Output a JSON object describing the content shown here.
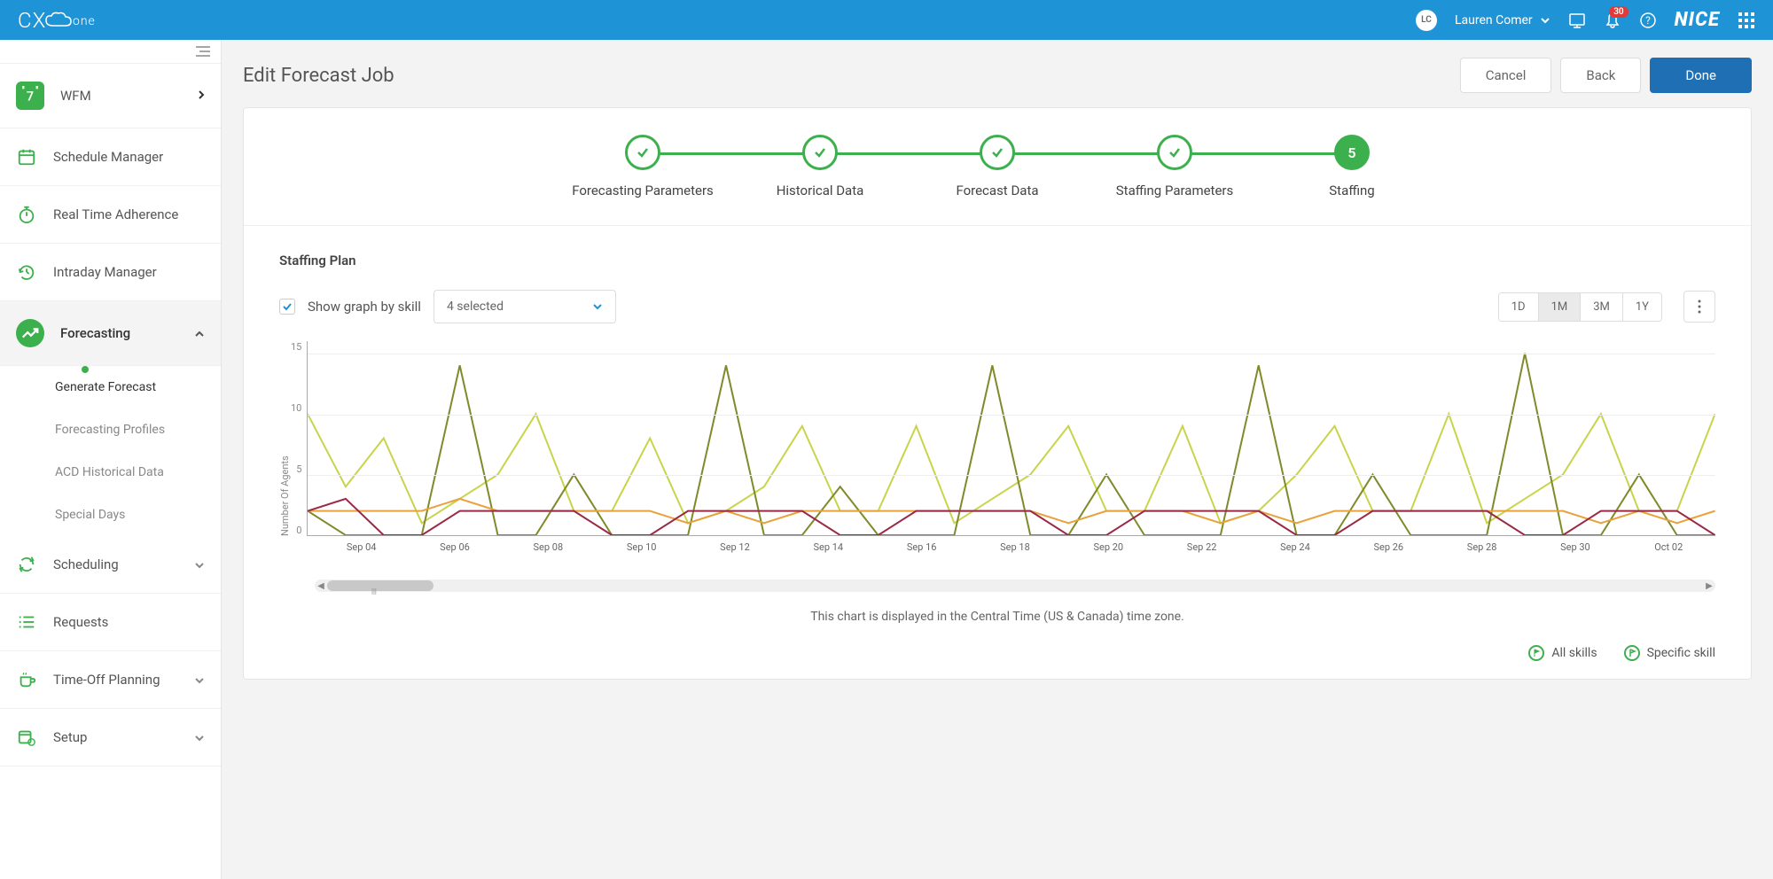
{
  "header": {
    "logo": "CX",
    "logo_suffix": "one",
    "user_initials": "LC",
    "user_name": "Lauren Comer",
    "notification_count": "30",
    "brand": "NICE"
  },
  "sidebar": {
    "main": {
      "label": "WFM"
    },
    "items": [
      {
        "label": "Schedule Manager",
        "icon": "calendar"
      },
      {
        "label": "Real Time Adherence",
        "icon": "clock"
      },
      {
        "label": "Intraday Manager",
        "icon": "refresh-clock"
      },
      {
        "label": "Forecasting",
        "icon": "trend",
        "active": true,
        "expanded": true
      },
      {
        "label": "Scheduling",
        "icon": "sync",
        "expandable": true
      },
      {
        "label": "Requests",
        "icon": "list"
      },
      {
        "label": "Time-Off Planning",
        "icon": "cup",
        "expandable": true
      },
      {
        "label": "Setup",
        "icon": "gear",
        "expandable": true
      }
    ],
    "forecasting_sub": [
      {
        "label": "Generate Forecast",
        "active": true
      },
      {
        "label": "Forecasting Profiles"
      },
      {
        "label": "ACD Historical Data"
      },
      {
        "label": "Special Days"
      }
    ]
  },
  "page": {
    "title": "Edit Forecast Job",
    "cancel": "Cancel",
    "back": "Back",
    "done": "Done"
  },
  "stepper": {
    "steps": [
      {
        "label": "Forecasting Parameters",
        "done": true
      },
      {
        "label": "Historical Data",
        "done": true
      },
      {
        "label": "Forecast Data",
        "done": true
      },
      {
        "label": "Staffing Parameters",
        "done": true
      },
      {
        "label": "Staffing",
        "current": true,
        "num": "5"
      }
    ]
  },
  "chart": {
    "section_title": "Staffing Plan",
    "checkbox_label": "Show graph by skill",
    "selected_text": "4 selected",
    "ranges": [
      "1D",
      "1M",
      "3M",
      "1Y"
    ],
    "range_active": "1M",
    "y_label": "Number Of Agents",
    "y_ticks": [
      "15",
      "10",
      "5",
      "0"
    ],
    "x_labels": [
      "Sep 04",
      "Sep 06",
      "Sep 08",
      "Sep 10",
      "Sep 12",
      "Sep 14",
      "Sep 16",
      "Sep 18",
      "Sep 20",
      "Sep 22",
      "Sep 24",
      "Sep 26",
      "Sep 28",
      "Sep 30",
      "Oct 02"
    ],
    "ylim": [
      0,
      16
    ],
    "colors": {
      "olive": "#808a2a",
      "yellow_green": "#c8d44a",
      "orange": "#e8a23c",
      "maroon": "#9a2a46",
      "grid": "#eeeeee",
      "axis": "#aaaaaa"
    },
    "series": {
      "olive": [
        2,
        0,
        0,
        0,
        14,
        0,
        0,
        5,
        0,
        0,
        0,
        14,
        0,
        0,
        4,
        0,
        0,
        0,
        14,
        0,
        0,
        5,
        0,
        0,
        0,
        14,
        0,
        0,
        5,
        0,
        0,
        0,
        15,
        0,
        0,
        5,
        0,
        0
      ],
      "yellow_green": [
        10,
        4,
        8,
        1,
        3,
        5,
        10,
        2,
        2,
        8,
        1,
        2,
        4,
        9,
        2,
        2,
        9,
        1,
        3,
        5,
        9,
        2,
        2,
        9,
        1,
        2,
        5,
        9,
        2,
        2,
        10,
        1,
        3,
        5,
        10,
        2,
        2,
        10
      ],
      "orange": [
        2,
        2,
        2,
        2,
        3,
        2,
        2,
        2,
        2,
        2,
        1,
        2,
        1,
        2,
        2,
        2,
        2,
        2,
        2,
        2,
        1,
        2,
        2,
        2,
        1,
        2,
        1,
        2,
        2,
        2,
        2,
        2,
        2,
        2,
        1,
        2,
        1,
        2
      ],
      "maroon": [
        2,
        3,
        0,
        0,
        2,
        2,
        2,
        2,
        0,
        0,
        2,
        2,
        2,
        2,
        0,
        0,
        2,
        2,
        2,
        2,
        0,
        0,
        2,
        2,
        2,
        2,
        0,
        0,
        2,
        2,
        2,
        2,
        0,
        0,
        2,
        2,
        2,
        0
      ]
    },
    "tz_note": "This chart is displayed in the Central Time (US & Canada) time zone.",
    "legend": {
      "all": "All skills",
      "specific": "Specific skill"
    }
  }
}
